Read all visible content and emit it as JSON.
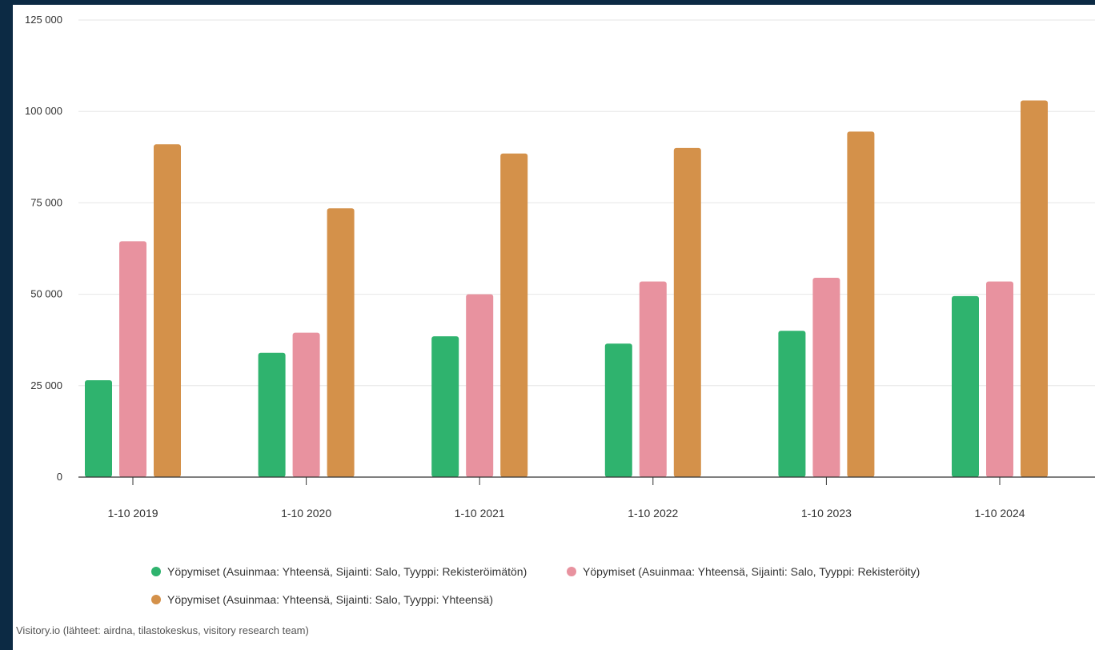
{
  "chart_data": {
    "type": "bar",
    "categories": [
      "1-10 2019",
      "1-10 2020",
      "1-10 2021",
      "1-10 2022",
      "1-10 2023",
      "1-10 2024"
    ],
    "series": [
      {
        "name": "Yöpymiset (Asuinmaa: Yhteensä, Sijainti: Salo, Tyyppi: Rekisteröimätön)",
        "color": "#2fb36e",
        "values": [
          26500,
          34000,
          38500,
          36500,
          40000,
          49500
        ]
      },
      {
        "name": "Yöpymiset (Asuinmaa: Yhteensä, Sijainti: Salo, Tyyppi: Rekisteröity)",
        "color": "#e8929f",
        "values": [
          64500,
          39500,
          50000,
          53500,
          54500,
          53500
        ]
      },
      {
        "name": "Yöpymiset (Asuinmaa: Yhteensä, Sijainti: Salo, Tyyppi: Yhteensä)",
        "color": "#d4914a",
        "values": [
          91000,
          73500,
          88500,
          90000,
          94500,
          103000
        ]
      }
    ],
    "y_ticks": [
      "0",
      "25 000",
      "50 000",
      "75 000",
      "100 000",
      "125 000"
    ],
    "ylim": [
      0,
      125000
    ],
    "grid": true,
    "legend_placement": "bottom",
    "credits": "Visitory.io (lähteet: airdna, tilastokeskus, visitory research team)"
  }
}
